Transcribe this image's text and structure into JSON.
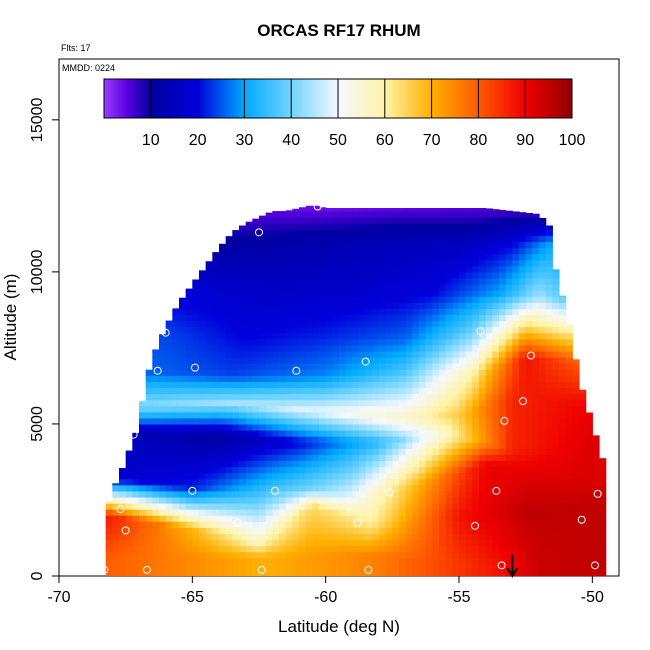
{
  "chart_data": {
    "type": "heatmap",
    "title": "ORCAS RF17 RHUM",
    "notes": [
      "Flts: 17",
      "MMDD: 0224"
    ],
    "xlabel": "Latitude (deg N)",
    "ylabel": "Altitude (m)",
    "xlim": [
      -70,
      -49
    ],
    "ylim": [
      0,
      17000
    ],
    "x_ticks": [
      {
        "value": -70,
        "label": "-70"
      },
      {
        "value": -65,
        "label": "-65"
      },
      {
        "value": -60,
        "label": "-60"
      },
      {
        "value": -55,
        "label": "-55"
      },
      {
        "value": -50,
        "label": "-50"
      }
    ],
    "y_ticks": [
      {
        "value": 0,
        "label": "0"
      },
      {
        "value": 5000,
        "label": "5000"
      },
      {
        "value": 10000,
        "label": "10000"
      },
      {
        "value": 15000,
        "label": "15000"
      }
    ],
    "colorbar": {
      "range": [
        0,
        100
      ],
      "placement": "top",
      "ticks": [
        {
          "value": 10,
          "label": "10"
        },
        {
          "value": 20,
          "label": "20"
        },
        {
          "value": 30,
          "label": "30"
        },
        {
          "value": 40,
          "label": "40"
        },
        {
          "value": 50,
          "label": "50"
        },
        {
          "value": 60,
          "label": "60"
        },
        {
          "value": 70,
          "label": "70"
        },
        {
          "value": 80,
          "label": "80"
        },
        {
          "value": 90,
          "label": "90"
        },
        {
          "value": 100,
          "label": "100"
        }
      ],
      "stops": [
        {
          "v": 0,
          "c": "#9a3cff"
        },
        {
          "v": 5,
          "c": "#5a00e0"
        },
        {
          "v": 10,
          "c": "#0000a0"
        },
        {
          "v": 20,
          "c": "#0000dc"
        },
        {
          "v": 30,
          "c": "#00a8ff"
        },
        {
          "v": 40,
          "c": "#70d4ff"
        },
        {
          "v": 50,
          "c": "#f4f8ff"
        },
        {
          "v": 60,
          "c": "#fff4a8"
        },
        {
          "v": 70,
          "c": "#ffb000"
        },
        {
          "v": 80,
          "c": "#ff5a00"
        },
        {
          "v": 90,
          "c": "#f00000"
        },
        {
          "v": 100,
          "c": "#900000"
        }
      ]
    },
    "envelope_top": [
      [
        -68.3,
        2000
      ],
      [
        -68.0,
        2800
      ],
      [
        -67.6,
        3600
      ],
      [
        -67.3,
        4300
      ],
      [
        -67.0,
        5000
      ],
      [
        -66.8,
        6200
      ],
      [
        -66.5,
        7200
      ],
      [
        -66.0,
        8200
      ],
      [
        -65.5,
        9000
      ],
      [
        -65.0,
        9600
      ],
      [
        -64.5,
        10200
      ],
      [
        -64.0,
        10800
      ],
      [
        -63.5,
        11300
      ],
      [
        -63.0,
        11600
      ],
      [
        -62.5,
        11800
      ],
      [
        -62.0,
        12000
      ],
      [
        -61.5,
        12000
      ],
      [
        -61.0,
        12100
      ],
      [
        -60.5,
        12200
      ],
      [
        -60.0,
        12100
      ],
      [
        -59.0,
        12100
      ],
      [
        -58.0,
        12100
      ],
      [
        -57.0,
        12100
      ],
      [
        -56.0,
        12100
      ],
      [
        -55.0,
        12100
      ],
      [
        -54.0,
        12100
      ],
      [
        -53.0,
        12000
      ],
      [
        -52.0,
        11900
      ],
      [
        -51.6,
        11500
      ],
      [
        -51.5,
        10500
      ],
      [
        -51.2,
        9500
      ],
      [
        -50.8,
        8000
      ],
      [
        -50.5,
        6500
      ],
      [
        -50.0,
        5000
      ],
      [
        -49.6,
        3800
      ],
      [
        -49.5,
        1500
      ]
    ],
    "envelope_bottom": [
      [
        -49.5,
        300
      ],
      [
        -68.3,
        100
      ]
    ],
    "layers": [
      {
        "name": "layer-low",
        "points": [
          [
            -68.3,
            600
          ],
          [
            -62.4,
            600
          ],
          [
            -58.4,
            700
          ],
          [
            -53.5,
            300
          ],
          [
            -52.0,
            600
          ],
          [
            -49.5,
            600
          ]
        ],
        "values": [
          80,
          70,
          75,
          88,
          94,
          95
        ]
      },
      {
        "name": "layer-moist",
        "points": [
          [
            -68.3,
            2000
          ],
          [
            -62.5,
            1200
          ],
          [
            -60.5,
            2300
          ],
          [
            -58.3,
            1800
          ],
          [
            -55.0,
            2000
          ],
          [
            -52.5,
            2100
          ],
          [
            -49.5,
            2400
          ]
        ],
        "values": [
          88,
          55,
          64,
          60,
          88,
          95,
          95
        ]
      },
      {
        "name": "layer-lower-dry",
        "points": [
          [
            -67.5,
            3200
          ],
          [
            -65.0,
            2900
          ],
          [
            -62.0,
            3000
          ],
          [
            -59.0,
            2700
          ],
          [
            -56.5,
            3000
          ],
          [
            -54.0,
            3700
          ],
          [
            -50.5,
            3200
          ]
        ],
        "values": [
          18,
          22,
          34,
          48,
          70,
          90,
          92
        ]
      },
      {
        "name": "layer-dry-band",
        "points": [
          [
            -67.0,
            4700
          ],
          [
            -64.0,
            4600
          ],
          [
            -61.0,
            4400
          ],
          [
            -58.0,
            4400
          ],
          [
            -55.5,
            4700
          ],
          [
            -53.0,
            4200
          ],
          [
            -50.0,
            4400
          ]
        ],
        "values": [
          14,
          10,
          20,
          34,
          56,
          86,
          92
        ]
      },
      {
        "name": "layer-mid-moist",
        "points": [
          [
            -66.8,
            5600
          ],
          [
            -63.5,
            5700
          ],
          [
            -60.0,
            5400
          ],
          [
            -57.0,
            5200
          ],
          [
            -55.0,
            5300
          ],
          [
            -53.0,
            5800
          ],
          [
            -50.2,
            5600
          ]
        ],
        "values": [
          42,
          44,
          50,
          56,
          66,
          86,
          90
        ]
      },
      {
        "name": "layer-mid",
        "points": [
          [
            -66.5,
            6700
          ],
          [
            -63.5,
            6600
          ],
          [
            -60.0,
            6600
          ],
          [
            -57.0,
            6800
          ],
          [
            -54.5,
            6600
          ],
          [
            -52.5,
            7200
          ],
          [
            -50.5,
            7000
          ]
        ],
        "values": [
          26,
          24,
          28,
          36,
          60,
          88,
          80
        ]
      },
      {
        "name": "layer-upper-mid",
        "points": [
          [
            -66.0,
            8000
          ],
          [
            -63.0,
            7800
          ],
          [
            -60.0,
            7900
          ],
          [
            -57.0,
            7800
          ],
          [
            -54.5,
            8000
          ],
          [
            -52.5,
            8300
          ],
          [
            -51.0,
            8200
          ]
        ],
        "values": [
          24,
          20,
          22,
          26,
          40,
          62,
          58
        ]
      },
      {
        "name": "layer-upper",
        "points": [
          [
            -65.0,
            9600
          ],
          [
            -62.0,
            9500
          ],
          [
            -59.0,
            9400
          ],
          [
            -56.0,
            9300
          ],
          [
            -53.5,
            9300
          ],
          [
            -52.0,
            9200
          ],
          [
            -51.2,
            9200
          ]
        ],
        "values": [
          18,
          16,
          17,
          20,
          30,
          44,
          38
        ]
      },
      {
        "name": "layer-high",
        "points": [
          [
            -64.0,
            11000
          ],
          [
            -61.0,
            11000
          ],
          [
            -58.0,
            11000
          ],
          [
            -55.0,
            10900
          ],
          [
            -53.0,
            10900
          ],
          [
            -51.6,
            10900
          ]
        ],
        "values": [
          10,
          12,
          14,
          15,
          20,
          30
        ]
      },
      {
        "name": "layer-top",
        "points": [
          [
            -62.5,
            12000
          ],
          [
            -60.0,
            12100
          ],
          [
            -57.0,
            12100
          ],
          [
            -54.0,
            12000
          ],
          [
            -52.0,
            11900
          ]
        ],
        "values": [
          5,
          4,
          5,
          6,
          8
        ]
      }
    ],
    "observation_points": [
      {
        "x": -68.3,
        "y": 200
      },
      {
        "x": -66.7,
        "y": 200
      },
      {
        "x": -62.4,
        "y": 200
      },
      {
        "x": -58.4,
        "y": 200
      },
      {
        "x": -53.4,
        "y": 350
      },
      {
        "x": -49.9,
        "y": 350
      },
      {
        "x": -67.5,
        "y": 1500
      },
      {
        "x": -63.3,
        "y": 1750
      },
      {
        "x": -58.8,
        "y": 1750
      },
      {
        "x": -54.4,
        "y": 1650
      },
      {
        "x": -50.4,
        "y": 1850
      },
      {
        "x": -67.7,
        "y": 2200
      },
      {
        "x": -65.0,
        "y": 2800
      },
      {
        "x": -61.9,
        "y": 2800
      },
      {
        "x": -57.6,
        "y": 2750
      },
      {
        "x": -53.6,
        "y": 2800
      },
      {
        "x": -49.8,
        "y": 2700
      },
      {
        "x": -67.2,
        "y": 4650
      },
      {
        "x": -53.3,
        "y": 5100
      },
      {
        "x": -52.6,
        "y": 5750
      },
      {
        "x": -66.3,
        "y": 6750
      },
      {
        "x": -64.9,
        "y": 6850
      },
      {
        "x": -61.1,
        "y": 6750
      },
      {
        "x": -58.5,
        "y": 7050
      },
      {
        "x": -66.0,
        "y": 8000
      },
      {
        "x": -54.2,
        "y": 8050
      },
      {
        "x": -52.3,
        "y": 7250
      },
      {
        "x": -62.5,
        "y": 11300
      },
      {
        "x": -60.3,
        "y": 12150
      },
      {
        "x": -51.8,
        "y": 11900
      }
    ],
    "marker": {
      "x": -53.0,
      "y_from": 700,
      "y_to": 0
    }
  }
}
